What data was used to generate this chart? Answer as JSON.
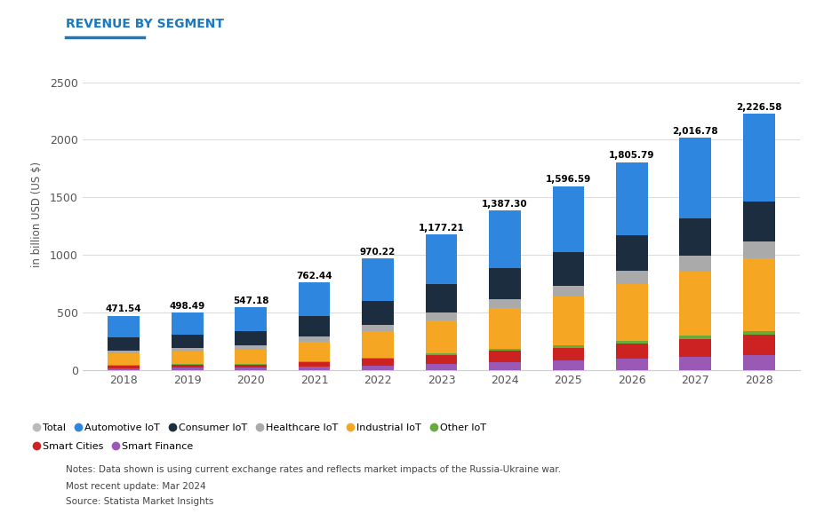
{
  "years": [
    2018,
    2019,
    2020,
    2021,
    2022,
    2023,
    2024,
    2025,
    2026,
    2027,
    2028
  ],
  "totals": [
    471.54,
    498.49,
    547.18,
    762.44,
    970.22,
    1177.21,
    1387.3,
    1596.59,
    1805.79,
    2016.78,
    2226.58
  ],
  "segments": {
    "Smart Finance": [
      18,
      20,
      22,
      28,
      38,
      55,
      70,
      85,
      100,
      115,
      130
    ],
    "Smart Cities": [
      22,
      24,
      26,
      38,
      60,
      75,
      95,
      110,
      130,
      155,
      175
    ],
    "Other IoT": [
      5,
      6,
      7,
      8,
      10,
      13,
      16,
      20,
      24,
      28,
      32
    ],
    "Industrial IoT": [
      100,
      110,
      125,
      175,
      230,
      290,
      355,
      420,
      490,
      560,
      630
    ],
    "Healthcare IoT": [
      25,
      28,
      32,
      42,
      55,
      68,
      82,
      98,
      115,
      132,
      150
    ],
    "Consumer IoT": [
      115,
      120,
      130,
      175,
      210,
      245,
      270,
      295,
      310,
      330,
      345
    ],
    "Automotive IoT": [
      186.54,
      190.49,
      205.18,
      296.44,
      367.22,
      431.21,
      499.3,
      568.59,
      636.79,
      696.78,
      764.58
    ]
  },
  "segment_colors": {
    "Smart Finance": "#9b59b6",
    "Smart Cities": "#cc2222",
    "Other IoT": "#6aaa3a",
    "Industrial IoT": "#f5a623",
    "Healthcare IoT": "#aaaaaa",
    "Consumer IoT": "#1c2d40",
    "Automotive IoT": "#2e86de"
  },
  "legend_row1": [
    {
      "label": "Total",
      "color": "#bbbbbb"
    },
    {
      "label": "Automotive IoT",
      "color": "#2e86de"
    },
    {
      "label": "Consumer IoT",
      "color": "#1c2d40"
    },
    {
      "label": "Healthcare IoT",
      "color": "#aaaaaa"
    },
    {
      "label": "Industrial IoT",
      "color": "#f5a623"
    },
    {
      "label": "Other IoT",
      "color": "#6aaa3a"
    }
  ],
  "legend_row2": [
    {
      "label": "Smart Cities",
      "color": "#cc2222"
    },
    {
      "label": "Smart Finance",
      "color": "#9b59b6"
    }
  ],
  "title": "REVENUE BY SEGMENT",
  "title_color": "#1a7abf",
  "ylabel": "in billion USD (US $)",
  "ylim": [
    0,
    2700
  ],
  "yticks": [
    0,
    500,
    1000,
    1500,
    2000,
    2500
  ],
  "bar_width": 0.5,
  "background_color": "#ffffff",
  "note1": "Notes: Data shown is using current exchange rates and reflects market impacts of the Russia-Ukraine war.",
  "note2": "Most recent update: Mar 2024",
  "note3": "Source: Statista Market Insights"
}
